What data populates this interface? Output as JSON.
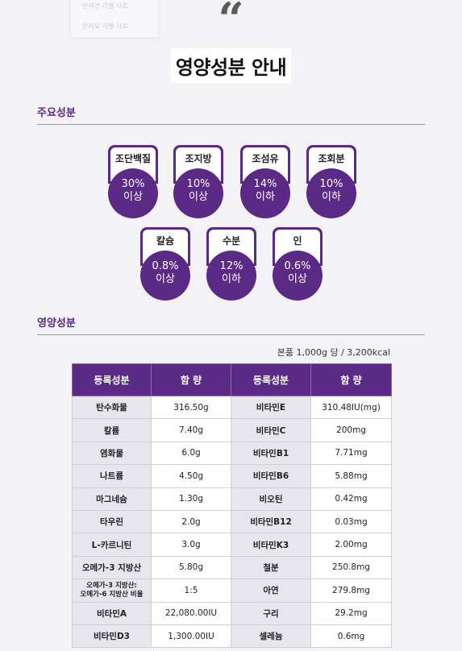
{
  "top": {
    "ghost_lines": [
      "반려견 라벨 사료",
      "반려묘 라벨 사료"
    ],
    "quote_glyph": "“"
  },
  "title": "영양성분 안내",
  "main_ingredients": {
    "heading": "주요성분",
    "items": [
      {
        "name": "조단백질",
        "amount": "30%",
        "qualifier": "이상"
      },
      {
        "name": "조지방",
        "amount": "10%",
        "qualifier": "이상"
      },
      {
        "name": "조섬유",
        "amount": "14%",
        "qualifier": "이하"
      },
      {
        "name": "조회분",
        "amount": "10%",
        "qualifier": "이하"
      },
      {
        "name": "칼슘",
        "amount": "0.8%",
        "qualifier": "이상"
      },
      {
        "name": "수분",
        "amount": "12%",
        "qualifier": "이하"
      },
      {
        "name": "인",
        "amount": "0.6%",
        "qualifier": "이상"
      }
    ]
  },
  "nutrition": {
    "heading": "영양성분",
    "unit_note": "본품 1,000g 당 / 3,200kcal",
    "headers": [
      "등록성분",
      "함 량",
      "등록성분",
      "함 량"
    ],
    "rows": [
      [
        "탄수화물",
        "316.50g",
        "비타민E",
        "310.48IU(mg)"
      ],
      [
        "칼륨",
        "7.40g",
        "비타민C",
        "200mg"
      ],
      [
        "염화물",
        "6.0g",
        "비타민B1",
        "7.71mg"
      ],
      [
        "나트륨",
        "4.50g",
        "비타민B6",
        "5.88mg"
      ],
      [
        "마그네슘",
        "1.30g",
        "비오틴",
        "0.42mg"
      ],
      [
        "타우린",
        "2.0g",
        "비타민B12",
        "0.03mg"
      ],
      [
        "L-카르니틴",
        "3.0g",
        "비타민K3",
        "2.00mg"
      ],
      [
        "오메가-3 지방산",
        "5.80g",
        "철분",
        "250.8mg"
      ],
      [
        "오메가-3 지방산:\n오메가-6 지방산 비율",
        "1:5",
        "아연",
        "279.8mg"
      ],
      [
        "비타민A",
        "22,080.00IU",
        "구리",
        "29.2mg"
      ],
      [
        "비타민D3",
        "1,300.00IU",
        "셀레늄",
        "0.6mg"
      ]
    ]
  },
  "colors": {
    "accent": "#5b2a86",
    "background": "#f3f3f5"
  }
}
